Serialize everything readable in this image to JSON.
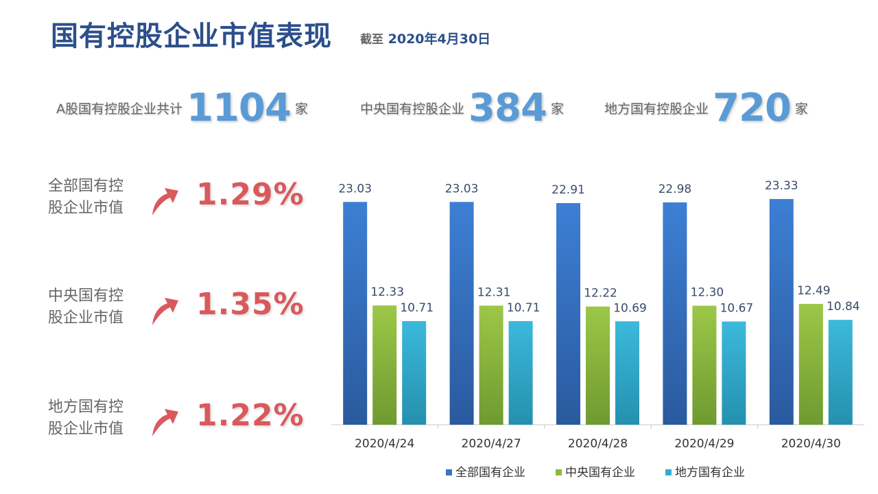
{
  "header": {
    "title": "国有控股企业市值表现",
    "asof_lead": "截至",
    "asof_date": "2020年4月30日"
  },
  "stats": [
    {
      "label": "A股国有控股企业共计",
      "value": "1104",
      "unit": "家"
    },
    {
      "label": "中央国有控股企业",
      "value": "384",
      "unit": "家"
    },
    {
      "label": "地方国有控股企业",
      "value": "720",
      "unit": "家"
    }
  ],
  "metrics": [
    {
      "label_line1": "全部国有控",
      "label_line2": "股企业市值",
      "value": "1.29%",
      "direction": "up-arrow-icon"
    },
    {
      "label_line1": "中央国有控",
      "label_line2": "股企业市值",
      "value": "1.35%",
      "direction": "up-arrow-icon"
    },
    {
      "label_line1": "地方国有控",
      "label_line2": "股企业市值",
      "value": "1.22%",
      "direction": "up-arrow-icon"
    }
  ],
  "colors": {
    "title": "#2c4f8c",
    "accent": "#5b9bd5",
    "up": "#d9595c",
    "series1": "#3a75c4",
    "series2": "#8dba3e",
    "series3": "#35acd0"
  },
  "chart_data": {
    "type": "bar",
    "categories": [
      "2020/4/24",
      "2020/4/27",
      "2020/4/28",
      "2020/4/29",
      "2020/4/30"
    ],
    "series": [
      {
        "name": "全部国有企业",
        "values": [
          23.03,
          23.03,
          22.91,
          22.98,
          23.33
        ]
      },
      {
        "name": "中央国有企业",
        "values": [
          12.33,
          12.31,
          12.22,
          12.3,
          12.49
        ]
      },
      {
        "name": "地方国有企业",
        "values": [
          10.71,
          10.71,
          10.69,
          10.67,
          10.84
        ]
      }
    ],
    "data_labels": [
      [
        "23.03",
        "23.03",
        "22.91",
        "22.98",
        "23.33"
      ],
      [
        "12.33",
        "12.31",
        "12.22",
        "12.30",
        "12.49"
      ],
      [
        "10.71",
        "10.71",
        "10.69",
        "10.67",
        "10.84"
      ]
    ],
    "ylim": [
      0,
      25
    ],
    "grid": false,
    "legend": "bottom"
  }
}
